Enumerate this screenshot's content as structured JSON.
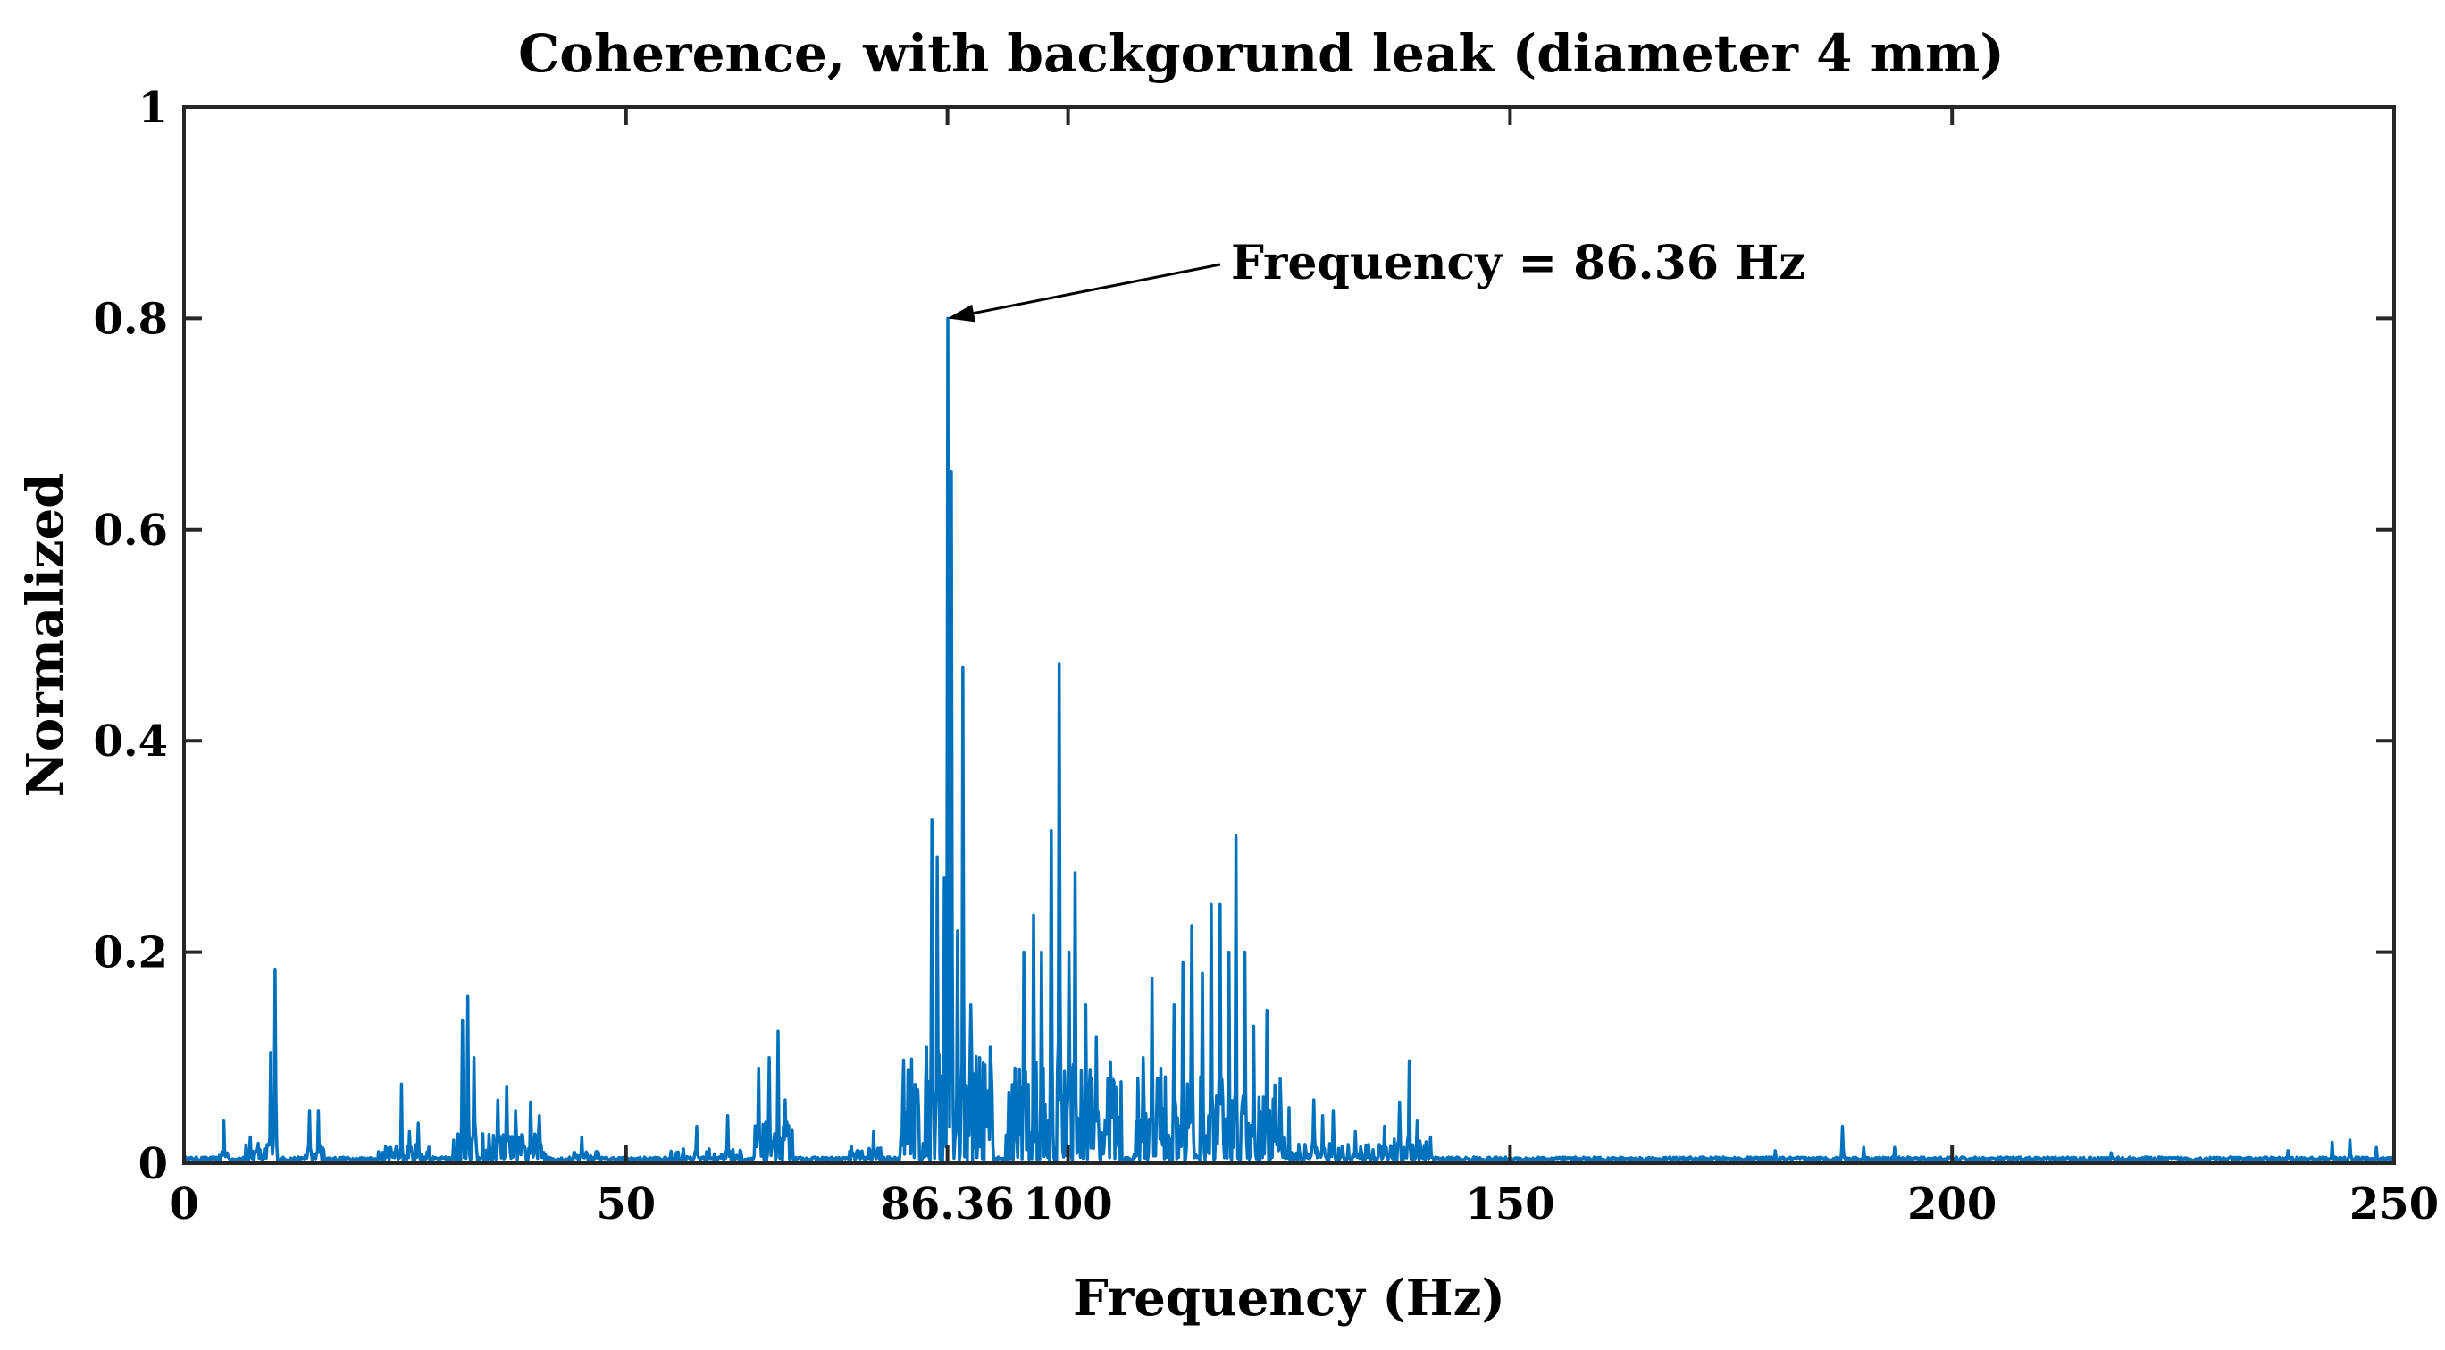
{
  "chart_data": {
    "type": "line",
    "title": "Coherence, with backgorund leak (diameter 4 mm)",
    "xlabel": "Frequency (Hz)",
    "ylabel": "Normalized",
    "xlim": [
      0,
      250
    ],
    "ylim": [
      0,
      1
    ],
    "x_ticks": [
      0,
      50,
      86.36,
      100,
      150,
      200,
      250
    ],
    "x_tick_labels": [
      "0",
      "50",
      "86.36",
      "100",
      "150",
      "200",
      "250"
    ],
    "y_ticks": [
      0,
      0.2,
      0.4,
      0.6,
      0.8,
      1
    ],
    "y_tick_labels": [
      "0",
      "0.2",
      "0.4",
      "0.6",
      "0.8",
      "1"
    ],
    "grid": false,
    "line_color": "#0072BD",
    "annotation": {
      "text": "Frequency = 86.36 Hz",
      "x": 86.36,
      "y": 0.8
    },
    "series": [
      {
        "peaks": [
          [
            4.5,
            0.04
          ],
          [
            7.5,
            0.025
          ],
          [
            9.8,
            0.105
          ],
          [
            10.3,
            0.183
          ],
          [
            14.2,
            0.05
          ],
          [
            15.2,
            0.05
          ],
          [
            24.6,
            0.075
          ],
          [
            25.5,
            0.03
          ],
          [
            26.5,
            0.038
          ],
          [
            31.5,
            0.135
          ],
          [
            32.1,
            0.158
          ],
          [
            32.8,
            0.1
          ],
          [
            35.5,
            0.06
          ],
          [
            36.5,
            0.073
          ],
          [
            37.5,
            0.05
          ],
          [
            39.2,
            0.058
          ],
          [
            40.2,
            0.045
          ],
          [
            45,
            0.025
          ],
          [
            58,
            0.035
          ],
          [
            61.5,
            0.045
          ],
          [
            65,
            0.09
          ],
          [
            66.2,
            0.1
          ],
          [
            67.2,
            0.125
          ],
          [
            68,
            0.06
          ],
          [
            78,
            0.03
          ],
          [
            82,
            0.08
          ],
          [
            84.6,
            0.325
          ],
          [
            85.2,
            0.29
          ],
          [
            86,
            0.27
          ],
          [
            86.36,
            0.8
          ],
          [
            86.8,
            0.655
          ],
          [
            87.5,
            0.22
          ],
          [
            88.1,
            0.47
          ],
          [
            89,
            0.15
          ],
          [
            90,
            0.1
          ],
          [
            94,
            0.09
          ],
          [
            95,
            0.2
          ],
          [
            96.1,
            0.235
          ],
          [
            97,
            0.2
          ],
          [
            98.1,
            0.315
          ],
          [
            99,
            0.473
          ],
          [
            100.1,
            0.2
          ],
          [
            100.8,
            0.275
          ],
          [
            102,
            0.15
          ],
          [
            103.2,
            0.12
          ],
          [
            104.5,
            0.08
          ],
          [
            108.5,
            0.1
          ],
          [
            109.5,
            0.175
          ],
          [
            110.5,
            0.09
          ],
          [
            112,
            0.15
          ],
          [
            113,
            0.19
          ],
          [
            114,
            0.225
          ],
          [
            115.2,
            0.18
          ],
          [
            116.2,
            0.245
          ],
          [
            117.2,
            0.245
          ],
          [
            118.2,
            0.2
          ],
          [
            119,
            0.31
          ],
          [
            120,
            0.2
          ],
          [
            121,
            0.13
          ],
          [
            122.5,
            0.145
          ],
          [
            124,
            0.08
          ],
          [
            127.8,
            0.06
          ],
          [
            128.8,
            0.045
          ],
          [
            130,
            0.05
          ],
          [
            132.5,
            0.03
          ],
          [
            135.8,
            0.035
          ],
          [
            137.5,
            0.058
          ],
          [
            138.6,
            0.097
          ],
          [
            139.5,
            0.04
          ],
          [
            141,
            0.025
          ],
          [
            180,
            0.012
          ],
          [
            187.6,
            0.035
          ],
          [
            190,
            0.015
          ],
          [
            193.5,
            0.015
          ],
          [
            218,
            0.01
          ],
          [
            238,
            0.012
          ],
          [
            243,
            0.02
          ],
          [
            245,
            0.022
          ],
          [
            248,
            0.015
          ]
        ],
        "clusters": [
          [
            4,
            5,
            0.022
          ],
          [
            7,
            10.5,
            0.022
          ],
          [
            13.5,
            16,
            0.018
          ],
          [
            22,
            28,
            0.018
          ],
          [
            30.5,
            41,
            0.03
          ],
          [
            44,
            47,
            0.014
          ],
          [
            55,
            63,
            0.014
          ],
          [
            64.5,
            69,
            0.04
          ],
          [
            75,
            79,
            0.016
          ],
          [
            81,
            91.5,
            0.11
          ],
          [
            93,
            106,
            0.1
          ],
          [
            107.5,
            125,
            0.085
          ],
          [
            125,
            136,
            0.02
          ],
          [
            136,
            141,
            0.025
          ]
        ]
      }
    ]
  }
}
